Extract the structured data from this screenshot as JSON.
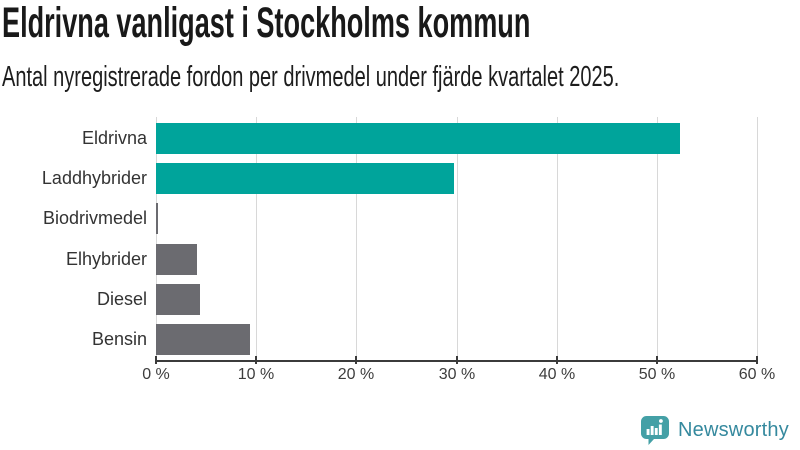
{
  "header": {
    "title": "Eldrivna vanligast i Stockholms kommun",
    "subtitle": "Antal nyregistrerade fordon per drivmedel under fjärde kvartalet 2025."
  },
  "chart_data": {
    "type": "bar",
    "orientation": "horizontal",
    "title": "Eldrivna vanligast i Stockholms kommun",
    "subtitle": "Antal nyregistrerade fordon per drivmedel under fjärde kvartalet 2025.",
    "categories": [
      "Eldrivna",
      "Laddhybrider",
      "Biodrivmedel",
      "Elhybrider",
      "Diesel",
      "Bensin"
    ],
    "values": [
      52.3,
      29.8,
      0.2,
      4.1,
      4.4,
      9.4
    ],
    "unit": "%",
    "bar_colors": [
      "#00a49b",
      "#00a49b",
      "#6b6b70",
      "#6b6b70",
      "#6b6b70",
      "#6b6b70"
    ],
    "highlight_color": "#00a49b",
    "default_bar_color": "#6b6b70",
    "xlim": [
      0,
      60
    ],
    "x_ticks": [
      0,
      10,
      20,
      30,
      40,
      50,
      60
    ],
    "x_tick_labels": [
      "0 %",
      "10 %",
      "20 %",
      "30 %",
      "40 %",
      "50 %",
      "60 %"
    ],
    "grid": true,
    "gridline_color": "#d8d8d8",
    "axis_color": "#3b3b3b",
    "legend": "none"
  },
  "footer": {
    "brand": "Newsworthy",
    "brand_color": "#35899e",
    "icon": "bar-chart-speech-bubble-icon",
    "icon_color": "#44a0a6"
  }
}
